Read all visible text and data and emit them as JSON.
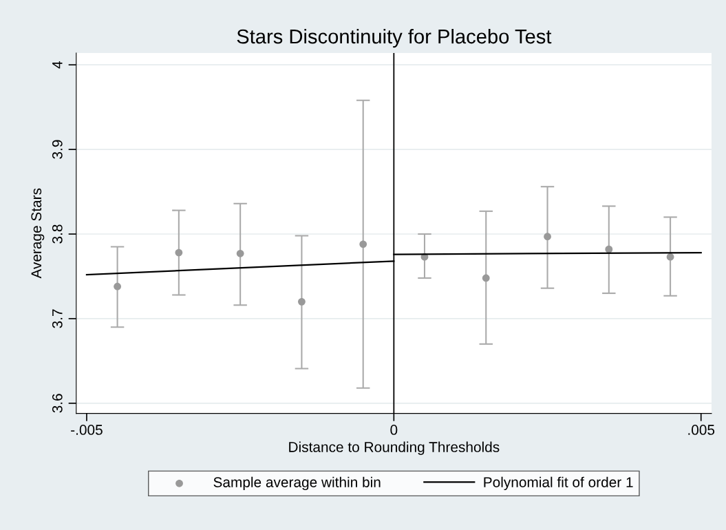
{
  "chart_data": {
    "type": "scatter",
    "title": "Stars Discontinuity for Placebo Test",
    "xlabel": "Distance to Rounding Thresholds",
    "ylabel": "Average Stars",
    "xlim": [
      -0.00517,
      0.00517
    ],
    "xticks": [
      {
        "value": -0.005,
        "label": "-.005"
      },
      0,
      {
        "value": 0.005,
        "label": ".005"
      }
    ],
    "ylim": [
      3.588,
      4.014
    ],
    "yticks": [
      3.6,
      3.7,
      3.8,
      3.9,
      4
    ],
    "grid": "y",
    "legend": "bottom",
    "marker": "circle",
    "ref_lines": [
      {
        "axis": "x",
        "value": 0,
        "color": "#000000"
      }
    ],
    "series": [
      {
        "name": "Sample average within bin",
        "color": "#999999",
        "x": [
          -0.0045,
          -0.0035,
          -0.0025,
          -0.0015,
          -0.0005,
          0.0005,
          0.0015,
          0.0025,
          0.0035,
          0.0045
        ],
        "values": [
          3.738,
          3.778,
          3.777,
          3.72,
          3.788,
          3.773,
          3.748,
          3.797,
          3.782,
          3.773
        ],
        "errors": [
          [
            3.69,
            3.785
          ],
          [
            3.728,
            3.828
          ],
          [
            3.716,
            3.836
          ],
          [
            3.641,
            3.798
          ],
          [
            3.618,
            3.958
          ],
          [
            3.748,
            3.8
          ],
          [
            3.67,
            3.827
          ],
          [
            3.736,
            3.856
          ],
          [
            3.73,
            3.833
          ],
          [
            3.727,
            3.82
          ]
        ]
      },
      {
        "name": "Polynomial fit of order 1",
        "type": "line",
        "color": "#000000",
        "line_style": "solid",
        "marker": "none",
        "x": [
          -0.005,
          0
        ],
        "values": [
          3.752,
          3.768
        ]
      },
      {
        "type": "line",
        "color": "#000000",
        "line_style": "solid",
        "marker": "none",
        "x": [
          0,
          0.005
        ],
        "values": [
          3.776,
          3.778
        ]
      }
    ]
  }
}
